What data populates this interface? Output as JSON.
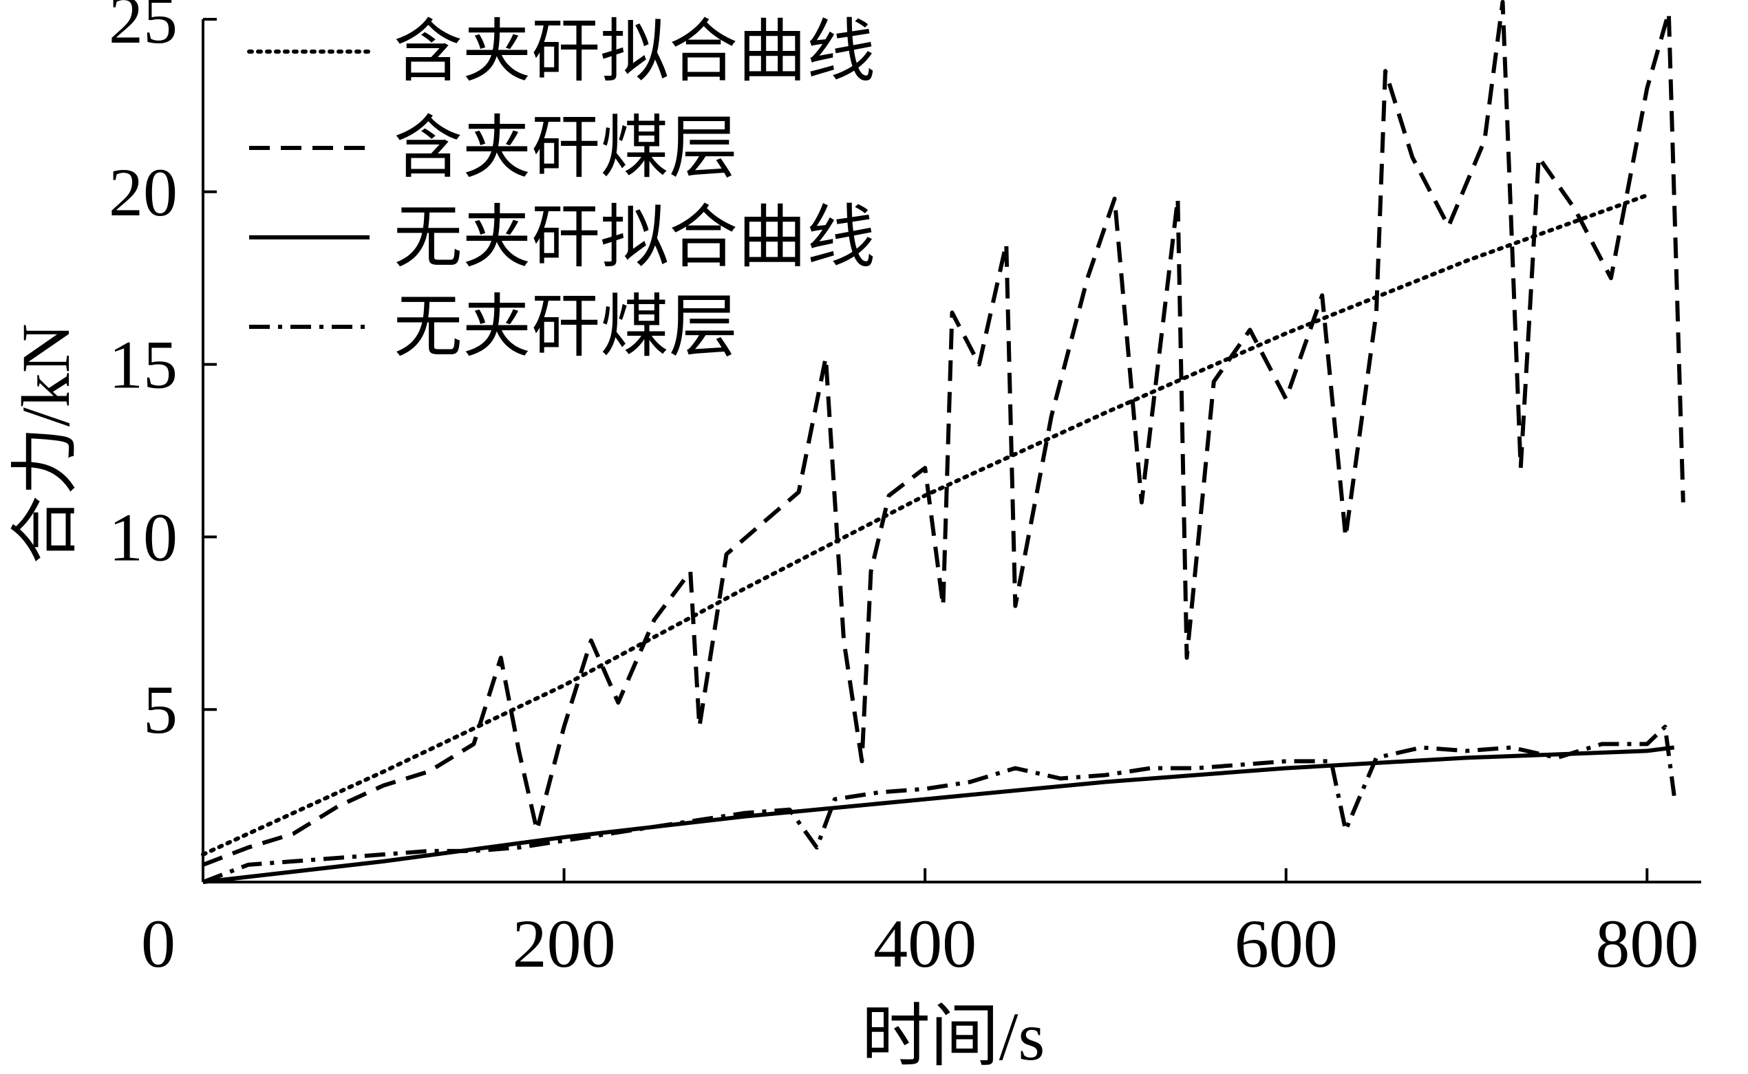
{
  "chart_data": {
    "type": "line",
    "title": "",
    "xlabel": "时间/s",
    "ylabel": "合力/kN",
    "xlim": [
      0,
      830
    ],
    "ylim": [
      0,
      25
    ],
    "xticks": [
      0,
      200,
      400,
      600,
      800
    ],
    "yticks": [
      5,
      10,
      15,
      20,
      25
    ],
    "xtick_labels": [
      "0",
      "200",
      "400",
      "600",
      "800"
    ],
    "ytick_labels": [
      "5",
      "10",
      "15",
      "20",
      "25"
    ],
    "grid": false,
    "legend_position": "top-left",
    "series": [
      {
        "name": "含夹矸拟合曲线",
        "style": "dotted",
        "x": [
          0,
          100,
          200,
          300,
          400,
          500,
          600,
          700,
          800
        ],
        "y": [
          0.8,
          3.2,
          5.7,
          8.5,
          11.2,
          13.6,
          15.9,
          18.0,
          19.9
        ]
      },
      {
        "name": "含夹矸煤层",
        "style": "dashed",
        "x": [
          0,
          25,
          50,
          75,
          100,
          125,
          150,
          165,
          175,
          185,
          200,
          215,
          230,
          250,
          270,
          275,
          290,
          310,
          330,
          345,
          355,
          365,
          370,
          380,
          400,
          410,
          415,
          430,
          445,
          450,
          470,
          490,
          505,
          520,
          540,
          545,
          560,
          580,
          600,
          620,
          633,
          650,
          655,
          670,
          690,
          710,
          720,
          730,
          740,
          760,
          780,
          800,
          812,
          820
        ],
        "y": [
          0.5,
          1.0,
          1.4,
          2.2,
          2.8,
          3.2,
          4.0,
          6.5,
          3.8,
          1.5,
          4.5,
          7.0,
          5.2,
          7.6,
          9.0,
          4.5,
          9.5,
          10.4,
          11.3,
          15.2,
          7.0,
          3.5,
          9.0,
          11.2,
          12.0,
          8.0,
          16.5,
          15.0,
          18.5,
          8.0,
          13.5,
          17.5,
          19.8,
          11.0,
          19.8,
          6.5,
          14.5,
          16.0,
          14.0,
          17.0,
          10.0,
          16.5,
          23.5,
          21.0,
          19.0,
          21.5,
          25.5,
          12.0,
          21.0,
          19.5,
          17.5,
          23.0,
          25.2,
          11.0
        ]
      },
      {
        "name": "无夹矸拟合曲线",
        "style": "solid",
        "x": [
          0,
          100,
          200,
          300,
          400,
          500,
          600,
          700,
          800,
          815
        ],
        "y": [
          0,
          0.6,
          1.3,
          1.9,
          2.4,
          2.9,
          3.3,
          3.6,
          3.8,
          3.9
        ]
      },
      {
        "name": "无夹矸煤层",
        "style": "dashdot",
        "x": [
          0,
          25,
          50,
          75,
          100,
          125,
          150,
          175,
          200,
          225,
          250,
          275,
          300,
          325,
          340,
          350,
          375,
          400,
          425,
          450,
          475,
          500,
          525,
          550,
          575,
          600,
          625,
          633,
          650,
          675,
          700,
          725,
          750,
          775,
          800,
          810,
          815
        ],
        "y": [
          0,
          0.5,
          0.6,
          0.7,
          0.8,
          0.9,
          0.9,
          1.0,
          1.2,
          1.4,
          1.6,
          1.8,
          2.0,
          2.1,
          1.0,
          2.4,
          2.6,
          2.7,
          2.9,
          3.3,
          3.0,
          3.1,
          3.3,
          3.3,
          3.4,
          3.5,
          3.5,
          1.5,
          3.6,
          3.9,
          3.8,
          3.9,
          3.6,
          4.0,
          4.0,
          4.5,
          2.5
        ]
      }
    ]
  }
}
